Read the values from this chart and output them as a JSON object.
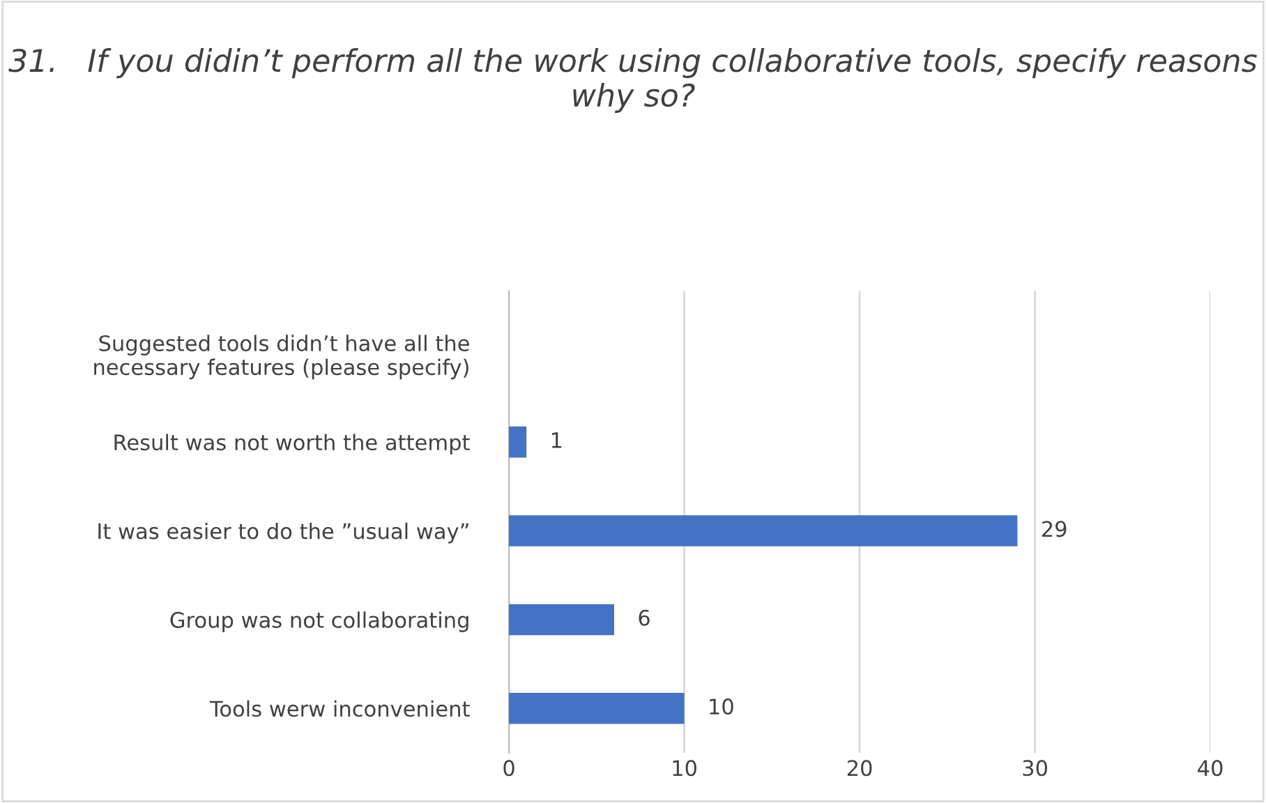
{
  "chart_data": {
    "type": "bar",
    "orientation": "horizontal",
    "title": "31.   If you didin’t perform all the work using collaborative tools, specify reasons why so?",
    "categories": [
      "Suggested tools didn’t have all the\nnecessary features (please specify)",
      "Result was not worth the attempt",
      "It was easier to do the ”usual way”",
      "Group was not collaborating",
      "Tools werw inconvenient"
    ],
    "values": [
      null,
      1,
      29,
      6,
      10
    ],
    "color": "#4472c4",
    "data_labels": true,
    "xlim": [
      0,
      40
    ],
    "xticks": [
      0,
      10,
      20,
      30,
      40
    ],
    "grid": "x",
    "legend": false
  }
}
